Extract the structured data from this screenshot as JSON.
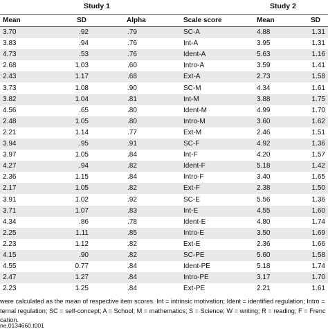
{
  "table": {
    "study1_label": "Study 1",
    "study2_label": "Study 2",
    "headers": {
      "mean1": "Mean",
      "sd1": "SD",
      "alpha": "Alpha",
      "scale": "Scale score",
      "mean2": "Mean",
      "sd2": "SD"
    },
    "rows": [
      {
        "mean1": "3.70",
        "sd1": ".92",
        "alpha": ".79",
        "scale": "SC-A",
        "mean2": "4.88",
        "sd2": "1.31"
      },
      {
        "mean1": "3.83",
        "sd1": ".94",
        "alpha": ".76",
        "scale": "Int-A",
        "mean2": "3.95",
        "sd2": "1.31"
      },
      {
        "mean1": "4.73",
        "sd1": ".53",
        "alpha": ".76",
        "scale": "Ident-A",
        "mean2": "5.63",
        "sd2": "1.16"
      },
      {
        "mean1": "2.68",
        "sd1": "1.03",
        "alpha": ".60",
        "scale": "Intro-A",
        "mean2": "3.59",
        "sd2": "1.41"
      },
      {
        "mean1": "2.43",
        "sd1": "1.17",
        "alpha": ".68",
        "scale": "Ext-A",
        "mean2": "2.73",
        "sd2": "1.58"
      },
      {
        "mean1": "3.73",
        "sd1": "1.08",
        "alpha": ".90",
        "scale": "SC-M",
        "mean2": "4.34",
        "sd2": "1.61"
      },
      {
        "mean1": "3.82",
        "sd1": "1.04",
        "alpha": ".81",
        "scale": "Int-M",
        "mean2": "3.88",
        "sd2": "1.75"
      },
      {
        "mean1": "4.56",
        "sd1": ".65",
        "alpha": ".80",
        "scale": "Ident-M",
        "mean2": "4.99",
        "sd2": "1.70"
      },
      {
        "mean1": "2.48",
        "sd1": "1.05",
        "alpha": ".80",
        "scale": "Intro-M",
        "mean2": "3.60",
        "sd2": "1.62"
      },
      {
        "mean1": "2.21",
        "sd1": "1.14",
        "alpha": ".77",
        "scale": "Ext-M",
        "mean2": "2.46",
        "sd2": "1.51"
      },
      {
        "mean1": "3.94",
        "sd1": ".95",
        "alpha": ".91",
        "scale": "SC-F",
        "mean2": "4.92",
        "sd2": "1.36"
      },
      {
        "mean1": "3.97",
        "sd1": "1.05",
        "alpha": ".84",
        "scale": "Int-F",
        "mean2": "4.20",
        "sd2": "1.57"
      },
      {
        "mean1": "4.27",
        "sd1": ".94",
        "alpha": ".82",
        "scale": "Ident-F",
        "mean2": "5.18",
        "sd2": "1.42"
      },
      {
        "mean1": "2.36",
        "sd1": "1.15",
        "alpha": ".84",
        "scale": "Intro-F",
        "mean2": "3.40",
        "sd2": "1.65"
      },
      {
        "mean1": "2.17",
        "sd1": "1.05",
        "alpha": ".82",
        "scale": "Ext-F",
        "mean2": "2.38",
        "sd2": "1.50"
      },
      {
        "mean1": "3.91",
        "sd1": "1.02",
        "alpha": ".92",
        "scale": "SC-E",
        "mean2": "5.56",
        "sd2": "1.36"
      },
      {
        "mean1": "3.71",
        "sd1": "1.07",
        "alpha": ".83",
        "scale": "Int-E",
        "mean2": "4.55",
        "sd2": "1.60"
      },
      {
        "mean1": "4.34",
        "sd1": ".86",
        "alpha": ".78",
        "scale": "Ident-E",
        "mean2": "4.80",
        "sd2": "1.74"
      },
      {
        "mean1": "2.25",
        "sd1": "1.11",
        "alpha": ".85",
        "scale": "Intro-E",
        "mean2": "3.50",
        "sd2": "1.69"
      },
      {
        "mean1": "2.23",
        "sd1": "1.12",
        "alpha": ".82",
        "scale": "Ext-E",
        "mean2": "2.36",
        "sd2": "1.66"
      },
      {
        "mean1": "4.15",
        "sd1": ".90",
        "alpha": ".82",
        "scale": "SC-PE",
        "mean2": "5.60",
        "sd2": "1.58"
      },
      {
        "mean1": "4.55",
        "sd1": "0.77",
        "alpha": ".84",
        "scale": "Ident-PE",
        "mean2": "5.18",
        "sd2": "1.74"
      },
      {
        "mean1": "2.47",
        "sd1": "1.27",
        "alpha": ".84",
        "scale": "Intro-PE",
        "mean2": "3.17",
        "sd2": "1.70"
      },
      {
        "mean1": "2.23",
        "sd1": "1.25",
        "alpha": ".84",
        "scale": "Ext-PE",
        "mean2": "2.21",
        "sd2": "1.61"
      }
    ],
    "footnote_line1": "were calculated as the mean of respective item scores. Int = intrinsic motivation; Ident = identified regulation; Intro =",
    "footnote_line2": "ternal regulation; SC = self-concept; A = School; M = mathematics; S = Science; W = writing; R = reading; F = Frenc",
    "footnote_line3": "cation.",
    "doi": "ne.0134660.t001"
  }
}
